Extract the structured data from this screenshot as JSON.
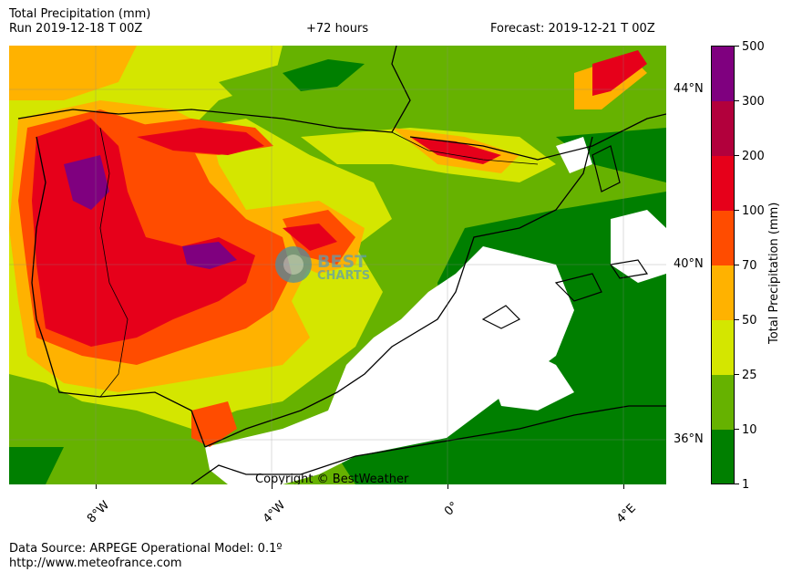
{
  "header": {
    "title": "Total Precipitation (mm)",
    "run": "Run 2019-12-18 T 00Z",
    "lead": "+72 hours",
    "forecast": "Forecast: 2019-12-21 T 00Z"
  },
  "map": {
    "copyright": "Copyright © BestWeather",
    "watermark_line1": "BEST",
    "watermark_line2": "CHARTS",
    "lat_labels": [
      "44°N",
      "40°N",
      "36°N"
    ],
    "lon_labels": [
      "8°W",
      "4°W",
      "0°",
      "4°E"
    ],
    "colors": {
      "dark_green": "#007f00",
      "green": "#66b200",
      "yellow_green": "#d4e600",
      "orange": "#ffb200",
      "orange_red": "#ff4c00",
      "red": "#e6001a",
      "crimson": "#b2003c",
      "purple": "#7f007f",
      "no_precip": "#ffffff"
    }
  },
  "colorbar": {
    "label": "Total Precipitation (mm)",
    "levels": [
      "1",
      "10",
      "25",
      "50",
      "70",
      "100",
      "200",
      "300",
      "500"
    ]
  },
  "footer": {
    "source": "Data Source: ARPEGE Operational Model: 0.1º",
    "url": "http://www.meteofrance.com"
  }
}
